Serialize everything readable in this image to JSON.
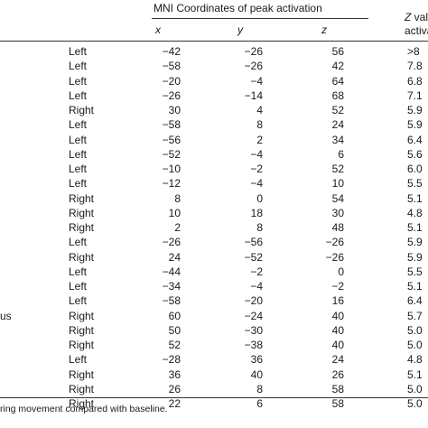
{
  "table": {
    "group_header": "MNI Coordinates of peak activation",
    "z_header_line1_italic": "Z",
    "z_header_line1_rest": " valu",
    "z_header_line2": "activa",
    "columns": {
      "x": "x",
      "y": "y",
      "z": "z"
    },
    "rows": [
      {
        "region": "",
        "side": "Left",
        "x": "−42",
        "y": "−26",
        "z": "56",
        "zval": ">8"
      },
      {
        "region": "",
        "side": "Left",
        "x": "−58",
        "y": "−26",
        "z": "42",
        "zval": "7.8"
      },
      {
        "region": "",
        "side": "Left",
        "x": "−20",
        "y": "−4",
        "z": "64",
        "zval": "6.8"
      },
      {
        "region": "",
        "side": "Left",
        "x": "−26",
        "y": "−14",
        "z": "68",
        "zval": "7.1"
      },
      {
        "region": "",
        "side": "Right",
        "x": "30",
        "y": "4",
        "z": "52",
        "zval": "5.9"
      },
      {
        "region": "",
        "side": "Left",
        "x": "−58",
        "y": "8",
        "z": "24",
        "zval": "5.9"
      },
      {
        "region": "",
        "side": "Left",
        "x": "−56",
        "y": "2",
        "z": "34",
        "zval": "6.4"
      },
      {
        "region": "",
        "side": "Left",
        "x": "−52",
        "y": "−4",
        "z": "6",
        "zval": "5.6"
      },
      {
        "region": "",
        "side": "Left",
        "x": "−10",
        "y": "−2",
        "z": "52",
        "zval": "6.0"
      },
      {
        "region": "",
        "side": "Left",
        "x": "−12",
        "y": "−4",
        "z": "10",
        "zval": "5.5"
      },
      {
        "region": "",
        "side": "Right",
        "x": "8",
        "y": "0",
        "z": "54",
        "zval": "5.1"
      },
      {
        "region": "",
        "side": "Right",
        "x": "10",
        "y": "18",
        "z": "30",
        "zval": "4.8"
      },
      {
        "region": "",
        "side": "Right",
        "x": "2",
        "y": "8",
        "z": "48",
        "zval": "5.1"
      },
      {
        "region": "",
        "side": "Left",
        "x": "−26",
        "y": "−56",
        "z": "−26",
        "zval": "5.9"
      },
      {
        "region": "",
        "side": "Right",
        "x": "24",
        "y": "−52",
        "z": "−26",
        "zval": "5.9"
      },
      {
        "region": "",
        "side": "Left",
        "x": "−44",
        "y": "−2",
        "z": "0",
        "zval": "5.5"
      },
      {
        "region": "",
        "side": "Left",
        "x": "−34",
        "y": "−4",
        "z": "−2",
        "zval": "5.1"
      },
      {
        "region": "",
        "side": "Left",
        "x": "−58",
        "y": "−20",
        "z": "16",
        "zval": "6.4"
      },
      {
        "region": "us",
        "side": "Right",
        "x": "60",
        "y": "−24",
        "z": "40",
        "zval": "5.7"
      },
      {
        "region": "",
        "side": "Right",
        "x": "50",
        "y": "−30",
        "z": "40",
        "zval": "5.0"
      },
      {
        "region": "",
        "side": "Right",
        "x": "52",
        "y": "−38",
        "z": "40",
        "zval": "5.0"
      },
      {
        "region": "",
        "side": "Left",
        "x": "−28",
        "y": "36",
        "z": "24",
        "zval": "4.8"
      },
      {
        "region": "",
        "side": "Right",
        "x": "36",
        "y": "40",
        "z": "26",
        "zval": "5.1"
      },
      {
        "region": "",
        "side": "Right",
        "x": "26",
        "y": "8",
        "z": "58",
        "zval": "5.0"
      },
      {
        "region": "",
        "side": "Right",
        "x": "22",
        "y": "6",
        "z": "58",
        "zval": "5.0"
      }
    ],
    "footnote": "ring movement compared with baseline."
  }
}
